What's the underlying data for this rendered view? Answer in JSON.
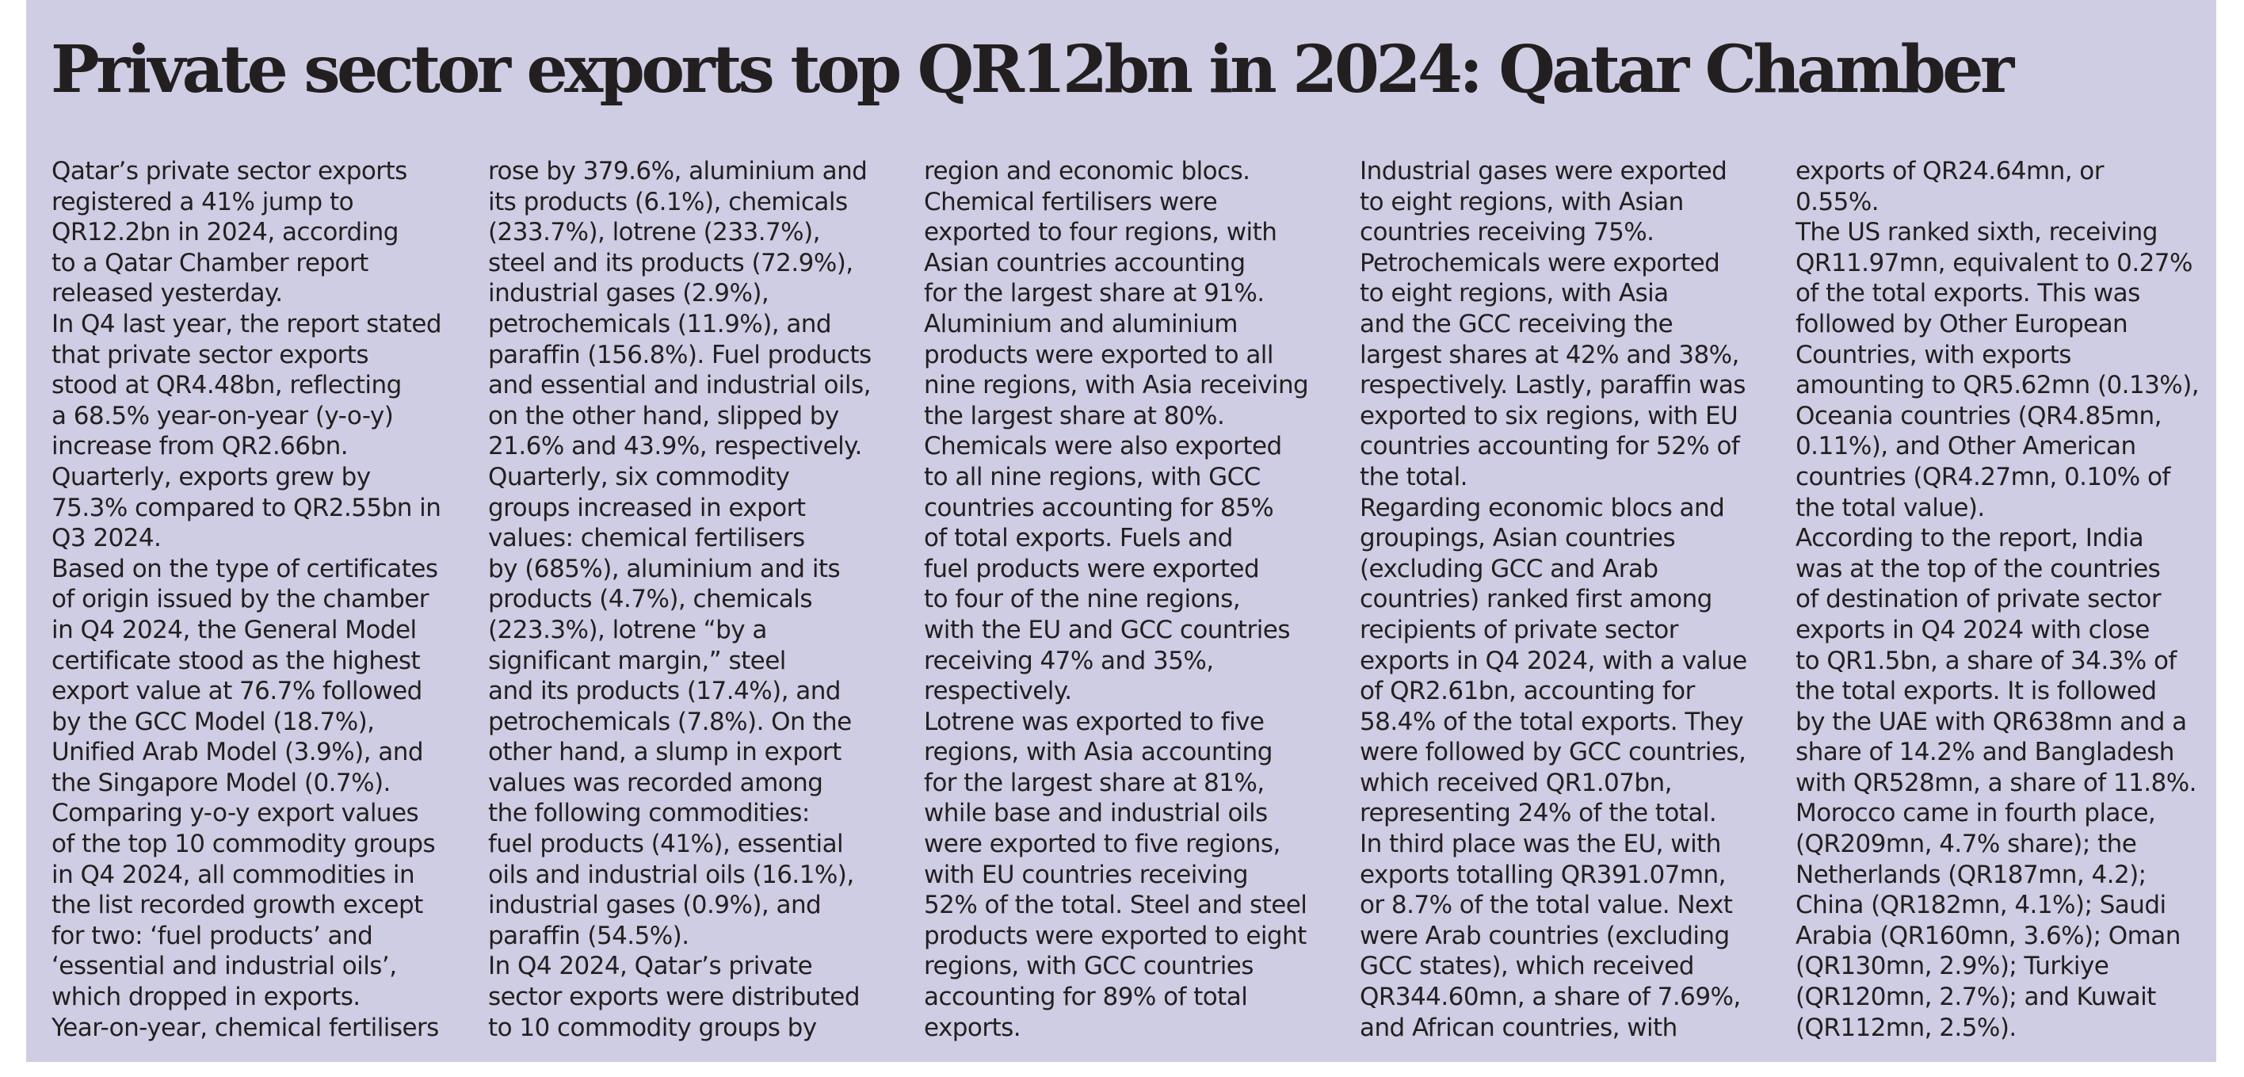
{
  "article": {
    "headline": "Private sector exports top QR12bn in 2024: Qatar Chamber",
    "columns": [
      [
        "Qatar’s private sector exports",
        "registered a 41% jump to",
        "QR12.2bn in 2024, according",
        "to a Qatar Chamber report",
        "released yesterday.",
        "In Q4 last year, the report stated",
        "that private sector exports",
        "stood at QR4.48bn, reflecting",
        "a 68.5% year-on-year (y-o-y)",
        "increase from QR2.66bn.",
        "Quarterly, exports grew by",
        "75.3% compared to QR2.55bn in",
        "Q3 2024.",
        "Based on the type of certificates",
        "of origin issued by the chamber",
        "in Q4 2024, the General Model",
        "certificate stood as the highest",
        "export value at 76.7% followed",
        "by the GCC Model (18.7%),",
        "Unified Arab Model (3.9%), and",
        "the Singapore Model (0.7%).",
        "Comparing y-o-y export values",
        "of the top 10 commodity groups",
        "in Q4 2024, all commodities in",
        "the list recorded growth except",
        "for two: ‘fuel products’ and",
        "‘essential and industrial oils’,",
        "which dropped in exports.",
        "Year-on-year, chemical fertilisers"
      ],
      [
        "rose by 379.6%, aluminium and",
        "its products (6.1%), chemicals",
        "(233.7%), lotrene (233.7%),",
        "steel and its products (72.9%),",
        "industrial gases (2.9%),",
        "petrochemicals (11.9%), and",
        "paraffin (156.8%). Fuel products",
        "and essential and industrial oils,",
        "on the other hand, slipped by",
        "21.6% and 43.9%, respectively.",
        "Quarterly, six commodity",
        "groups increased in export",
        "values: chemical fertilisers",
        "by (685%), aluminium and its",
        "products (4.7%), chemicals",
        "(223.3%), lotrene “by a",
        "significant margin,” steel",
        "and its products (17.4%), and",
        "petrochemicals (7.8%). On the",
        "other hand, a slump in export",
        "values was recorded among",
        "the following commodities:",
        "fuel products (41%), essential",
        "oils and industrial oils (16.1%),",
        "industrial gases (0.9%), and",
        "paraffin (54.5%).",
        "In Q4 2024, Qatar’s private",
        "sector exports were distributed",
        "to 10 commodity groups by"
      ],
      [
        "region and economic blocs.",
        "Chemical fertilisers were",
        "exported to four regions, with",
        "Asian countries accounting",
        "for the largest share at 91%.",
        "Aluminium and aluminium",
        "products were exported to all",
        "nine regions, with Asia receiving",
        "the largest share at 80%.",
        "Chemicals were also exported",
        "to all nine regions, with GCC",
        "countries accounting for 85%",
        "of total exports. Fuels and",
        "fuel products were exported",
        "to four of the nine regions,",
        "with the EU and GCC countries",
        "receiving 47% and 35%,",
        "respectively.",
        "Lotrene was exported to five",
        "regions, with Asia accounting",
        "for the largest share at 81%,",
        "while base and industrial oils",
        "were exported to five regions,",
        "with EU countries receiving",
        "52% of the total. Steel and steel",
        "products were exported to eight",
        "regions, with GCC countries",
        "accounting for 89% of total",
        "exports."
      ],
      [
        "Industrial gases were exported",
        "to eight regions, with Asian",
        "countries receiving 75%.",
        "Petrochemicals were exported",
        "to eight regions, with Asia",
        "and the GCC receiving the",
        "largest shares at 42% and 38%,",
        "respectively. Lastly, paraffin was",
        "exported to six regions, with EU",
        "countries accounting for 52% of",
        "the total.",
        "Regarding economic blocs and",
        "groupings, Asian countries",
        "(excluding GCC and Arab",
        "countries) ranked first among",
        "recipients of private sector",
        "exports in Q4 2024, with a value",
        "of QR2.61bn, accounting for",
        "58.4% of the total exports. They",
        "were followed by GCC countries,",
        "which received QR1.07bn,",
        "representing 24% of the total.",
        "In third place was the EU, with",
        "exports totalling QR391.07mn,",
        "or 8.7% of the total value. Next",
        "were Arab countries (excluding",
        "GCC states), which received",
        "QR344.60mn, a share of 7.69%,",
        "and African countries, with"
      ],
      [
        "exports of QR24.64mn, or",
        "0.55%.",
        "The US ranked sixth, receiving",
        "QR11.97mn, equivalent to 0.27%",
        "of the total exports. This was",
        "followed by Other European",
        "Countries, with exports",
        "amounting to QR5.62mn (0.13%),",
        "Oceania countries (QR4.85mn,",
        "0.11%), and Other American",
        "countries (QR4.27mn, 0.10% of",
        "the total value).",
        "According to the report, India",
        "was at the top of the countries",
        "of destination of private sector",
        "exports in Q4 2024 with close",
        "to QR1.5bn, a share of 34.3% of",
        "the total exports. It is followed",
        "by the UAE with QR638mn and a",
        "share of 14.2% and Bangladesh",
        "with QR528mn, a share of 11.8%.",
        "Morocco came in fourth place,",
        "(QR209mn, 4.7% share); the",
        "Netherlands (QR187mn, 4.2);",
        "China (QR182mn, 4.1%); Saudi",
        "Arabia (QR160mn, 3.6%); Oman",
        "(QR130mn, 2.9%); Turkiye",
        "(QR120mn, 2.7%); and Kuwait",
        "(QR112mn, 2.5%)."
      ]
    ]
  }
}
